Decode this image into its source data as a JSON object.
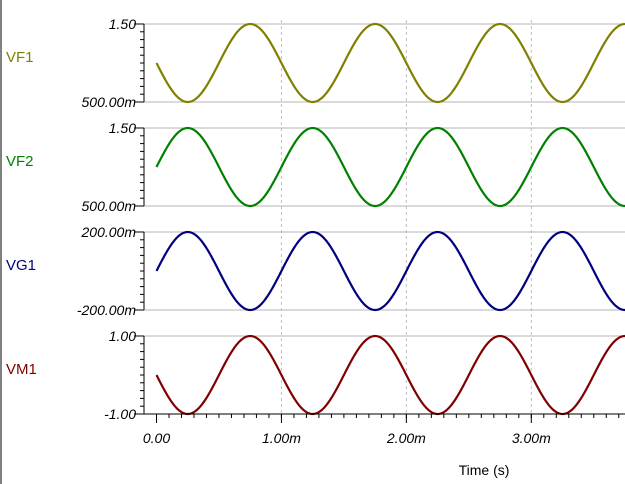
{
  "chart_data": {
    "type": "line",
    "x_axis": {
      "title": "Time (s)",
      "range": [
        -0.0001,
        0.00375
      ],
      "ticks": [
        0,
        0.001,
        0.002,
        0.003
      ],
      "tick_labels": [
        "0.00",
        "1.00m",
        "2.00m",
        "3.00m"
      ],
      "grid": "dashed vertical"
    },
    "channels": [
      {
        "name": "VF1",
        "color": "#808000",
        "y_range": [
          0.5,
          1.5
        ],
        "y_tick_labels": [
          "1.50",
          "500.00m"
        ],
        "waveform": {
          "shape": "sine",
          "offset": 1.0,
          "amplitude": 0.5,
          "frequency_hz": 1000,
          "phase_deg": 180
        }
      },
      {
        "name": "VF2",
        "color": "#008000",
        "y_range": [
          0.5,
          1.5
        ],
        "y_tick_labels": [
          "1.50",
          "500.00m"
        ],
        "waveform": {
          "shape": "sine",
          "offset": 1.0,
          "amplitude": 0.5,
          "frequency_hz": 1000,
          "phase_deg": 0
        }
      },
      {
        "name": "VG1",
        "color": "#000080",
        "y_range": [
          -0.2,
          0.2
        ],
        "y_tick_labels": [
          "200.00m",
          "-200.00m"
        ],
        "waveform": {
          "shape": "sine",
          "offset": 0.0,
          "amplitude": 0.2,
          "frequency_hz": 1000,
          "phase_deg": 0
        }
      },
      {
        "name": "VM1",
        "color": "#800000",
        "y_range": [
          -1.0,
          1.0
        ],
        "y_tick_labels": [
          "1.00",
          "-1.00"
        ],
        "waveform": {
          "shape": "sine",
          "offset": 0.0,
          "amplitude": 1.0,
          "frequency_hz": 1000,
          "phase_deg": 180
        }
      }
    ]
  }
}
